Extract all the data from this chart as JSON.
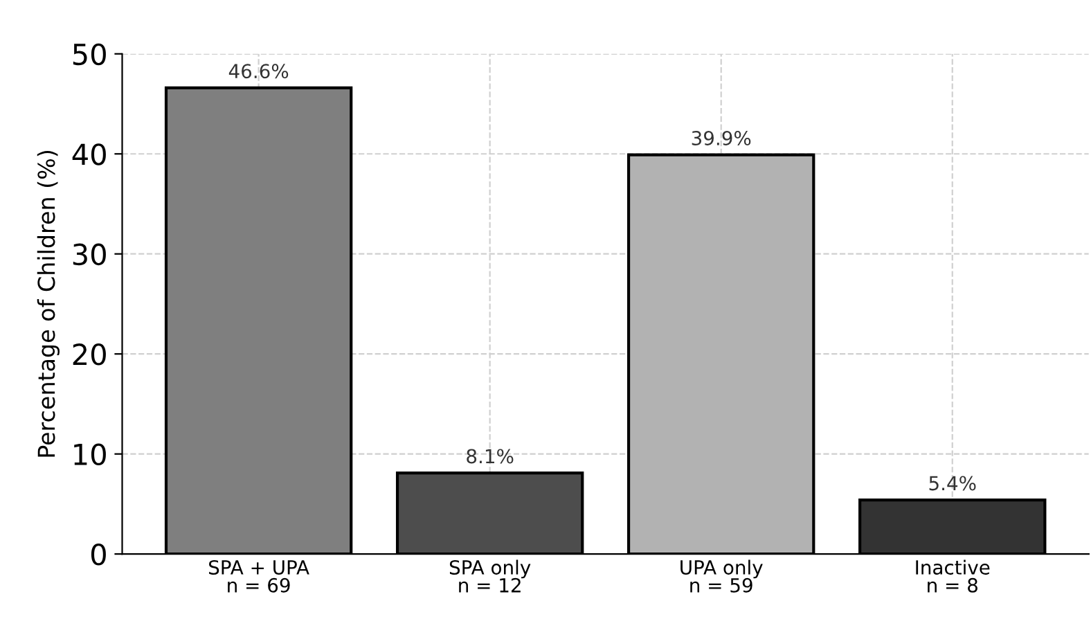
{
  "chart_data": {
    "type": "bar",
    "ylabel": "Percentage of Children (%)",
    "categories": [
      "SPA + UPA\nn = 69",
      "SPA only\nn = 12",
      "UPA only\nn = 59",
      "Inactive\nn = 8"
    ],
    "values": [
      46.6,
      8.1,
      39.9,
      5.4
    ],
    "colors": [
      "#7f7f7f",
      "#4d4d4d",
      "#b2b2b2",
      "#333333"
    ],
    "value_labels": [
      "46.6%",
      "8.1%",
      "39.9%",
      "5.4%"
    ],
    "ylim": [
      0,
      50
    ],
    "yticks": [
      0,
      10,
      20,
      30,
      40,
      50
    ],
    "grid": true
  }
}
